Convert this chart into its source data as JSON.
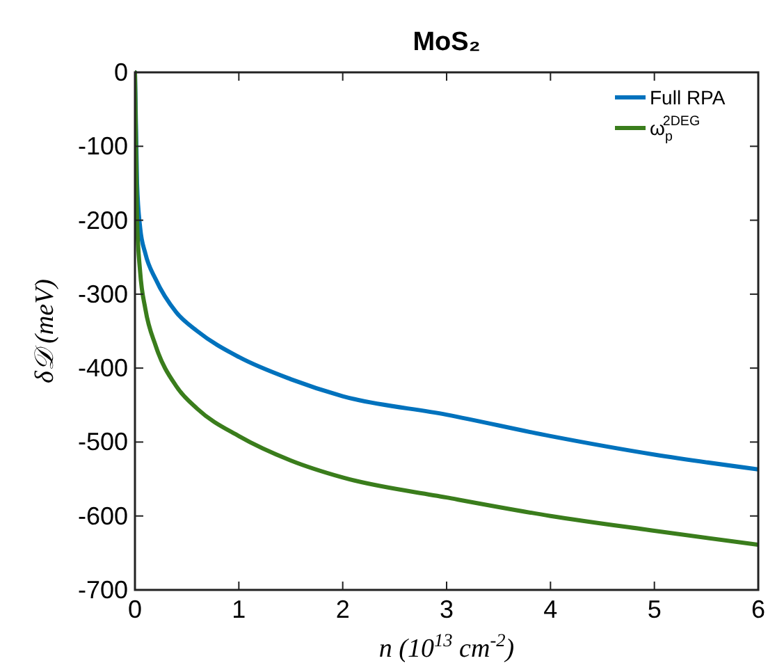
{
  "chart_data": {
    "type": "line",
    "title": "MoS₂",
    "xlabel": "n (10$^{13}$ cm$^{-2}$)",
    "ylabel": "δ𝒟 (meV)",
    "xlim": [
      0,
      6
    ],
    "xticks": [
      0,
      1,
      2,
      3,
      4,
      5,
      6
    ],
    "ylim": [
      -700,
      0
    ],
    "yticks": [
      -700,
      -600,
      -500,
      -400,
      -300,
      -200,
      -100,
      0
    ],
    "legend": "top right",
    "grid": false,
    "marker": "none",
    "line_style": "solid",
    "series": [
      {
        "name": "Full RPA",
        "color": "#0072bd",
        "x": [
          0,
          0.02,
          0.05,
          0.1,
          0.2,
          0.4,
          0.6,
          1,
          1.5,
          2,
          3,
          4,
          5,
          6
        ],
        "values": [
          0,
          -150,
          -210,
          -245,
          -280,
          -325,
          -350,
          -385,
          -415,
          -438,
          -463,
          -492,
          -517,
          -537
        ]
      },
      {
        "name": "ω$_{p}$$^{2DEG}$",
        "color": "#3a7d1c",
        "x": [
          0,
          0.02,
          0.05,
          0.1,
          0.2,
          0.4,
          0.6,
          1,
          1.5,
          2,
          3,
          4,
          5,
          6
        ],
        "values": [
          0,
          -200,
          -270,
          -320,
          -370,
          -425,
          -455,
          -492,
          -525,
          -548,
          -575,
          -600,
          -620,
          -639
        ]
      }
    ]
  }
}
